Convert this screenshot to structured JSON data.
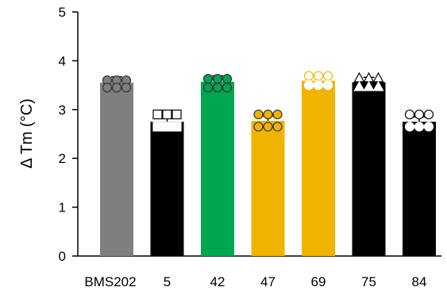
{
  "chart_data": {
    "type": "bar",
    "categories": [
      "BMS202",
      "5",
      "42",
      "47",
      "69",
      "75",
      "84"
    ],
    "values": [
      3.55,
      2.75,
      3.57,
      2.77,
      3.59,
      3.56,
      2.75
    ],
    "error": [
      0.12,
      0.1,
      0.12,
      0.1,
      0.1,
      0.1,
      0.1
    ],
    "bar_colors": [
      "#7f7f7f",
      "#000000",
      "#00a651",
      "#f0b400",
      "#f0b400",
      "#000000",
      "#000000"
    ],
    "marker_shapes": [
      "circle",
      "square",
      "circle",
      "circle",
      "circle",
      "triangle",
      "circle"
    ],
    "marker_colors": [
      "#7f7f7f",
      "#000000",
      "#00a651",
      "#f0b400",
      "#f0b400",
      "#000000",
      "#000000"
    ],
    "replicates": [
      [
        3.6,
        3.6,
        3.6,
        3.45,
        3.45,
        3.45
      ],
      [
        2.9,
        2.9,
        2.9,
        2.65,
        2.65,
        2.65
      ],
      [
        3.63,
        3.63,
        3.63,
        3.45,
        3.45,
        3.45
      ],
      [
        2.9,
        2.9,
        2.9,
        2.65,
        2.65,
        2.65
      ],
      [
        3.69,
        3.69,
        3.69,
        3.5,
        3.5,
        3.5
      ],
      [
        3.65,
        3.65,
        3.65,
        3.47,
        3.47,
        3.47
      ],
      [
        2.9,
        2.9,
        2.9,
        2.65,
        2.65,
        2.65
      ]
    ],
    "ylabel": "Δ Tm (°C)",
    "ylim": [
      0,
      5
    ],
    "yticks": [
      0,
      1,
      2,
      3,
      4,
      5
    ],
    "grid": false
  }
}
